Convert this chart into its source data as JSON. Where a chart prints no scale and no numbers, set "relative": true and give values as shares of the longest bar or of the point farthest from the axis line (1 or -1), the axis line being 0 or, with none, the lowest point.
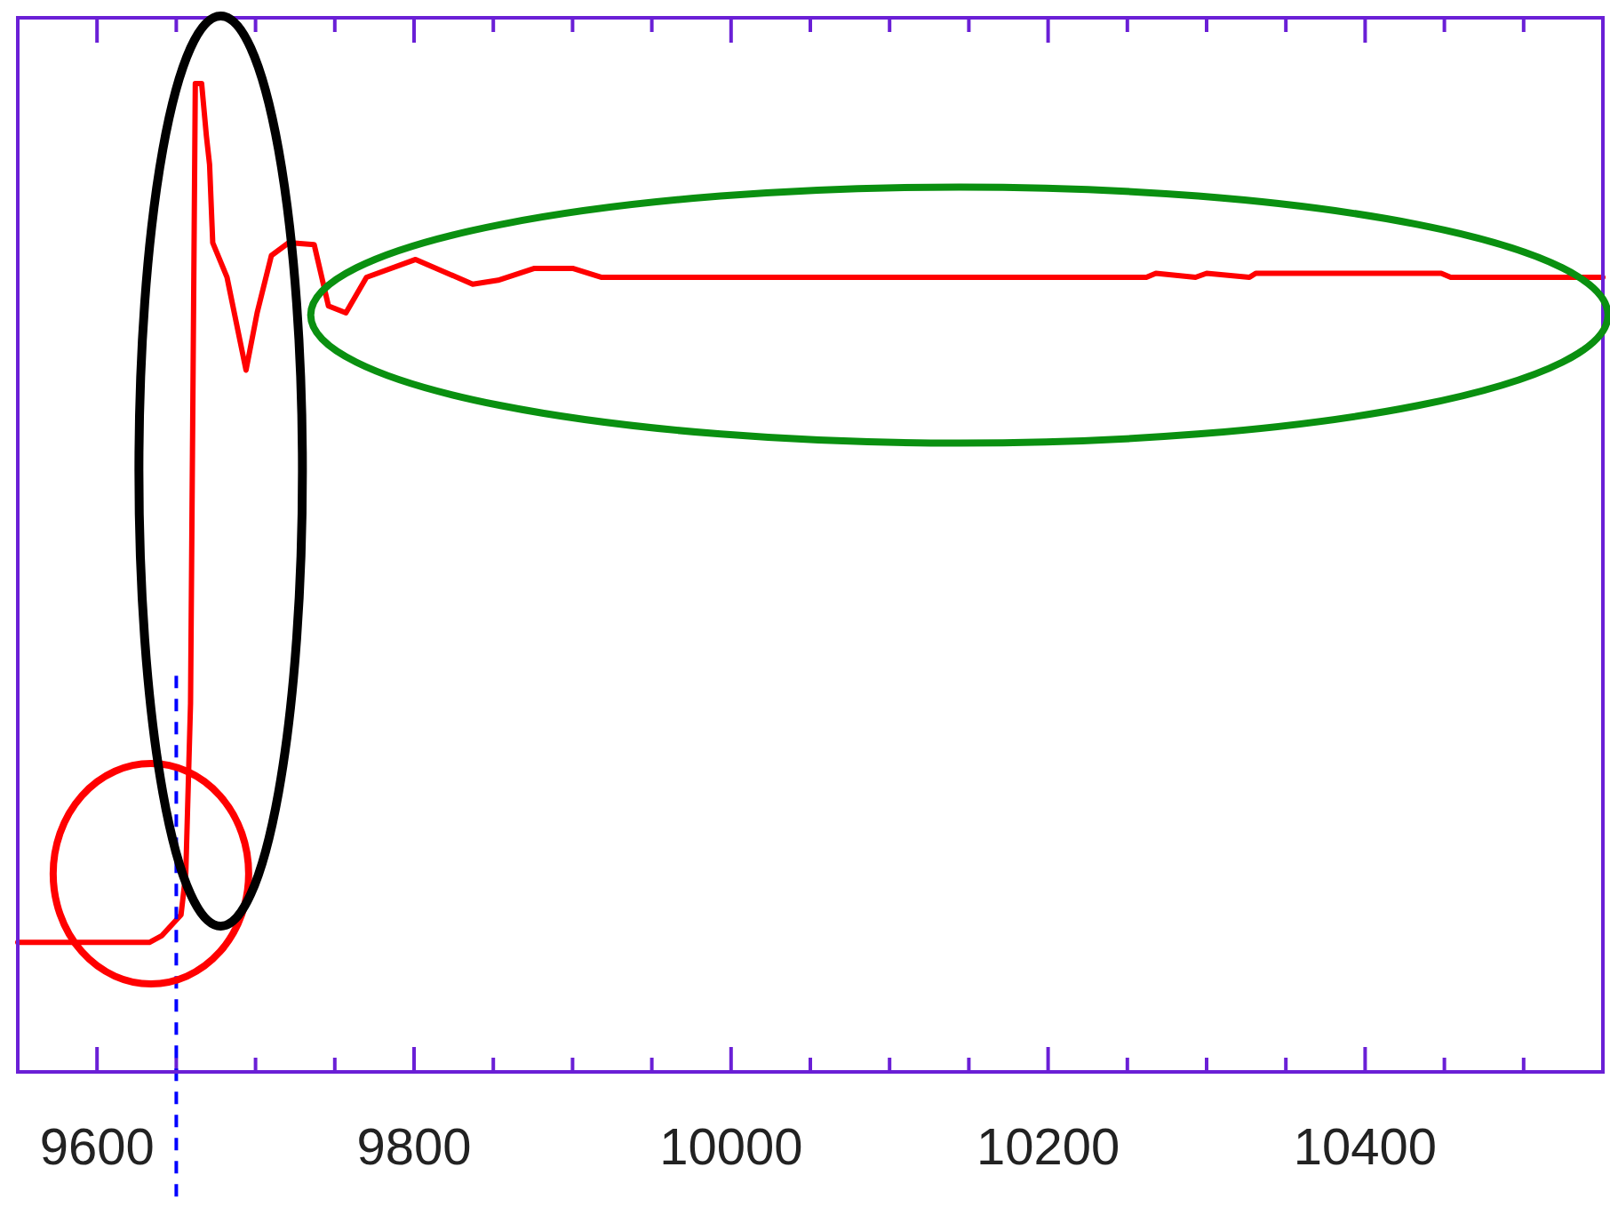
{
  "chart_data": {
    "type": "line",
    "relative": true,
    "x": [
      9550,
      9633,
      9641,
      9653,
      9656,
      9659,
      9662,
      9666,
      9669,
      9671,
      9673,
      9682,
      9694,
      9701,
      9710,
      9721,
      9737,
      9746,
      9757,
      9770,
      9801,
      9837,
      9853,
      9876,
      9900,
      9918,
      10262,
      10268,
      10293,
      10300,
      10327,
      10331,
      10448,
      10454,
      10474,
      10550
    ],
    "series": [
      {
        "color": "#ff0000",
        "values": [
          0.131,
          0.131,
          0.138,
          0.159,
          0.201,
          0.373,
          1.0,
          1.0,
          0.947,
          0.918,
          0.839,
          0.804,
          0.71,
          0.768,
          0.826,
          0.839,
          0.837,
          0.775,
          0.768,
          0.804,
          0.822,
          0.797,
          0.801,
          0.813,
          0.813,
          0.804,
          0.804,
          0.808,
          0.804,
          0.808,
          0.804,
          0.808,
          0.808,
          0.804,
          0.804,
          0.804
        ]
      }
    ],
    "xlim": [
      9550,
      10550
    ],
    "xticks": [
      9600,
      {
        "value": 9650,
        "label": null
      },
      {
        "value": 9700,
        "label": null
      },
      {
        "value": 9750,
        "label": null
      },
      9800,
      {
        "value": 9850,
        "label": null
      },
      {
        "value": 9900,
        "label": null
      },
      {
        "value": 9950,
        "label": null
      },
      10000,
      {
        "value": 10050,
        "label": null
      },
      {
        "value": 10100,
        "label": null
      },
      {
        "value": 10150,
        "label": null
      },
      10200,
      {
        "value": 10250,
        "label": null
      },
      {
        "value": 10300,
        "label": null
      },
      {
        "value": 10350,
        "label": null
      },
      10400,
      {
        "value": 10450,
        "label": null
      },
      {
        "value": 10500,
        "label": null
      }
    ],
    "ref_lines": [
      {
        "axis": "x",
        "value": 9650,
        "color": "#0000ff",
        "line_style": "dashed"
      }
    ],
    "grid": false,
    "marker": "none",
    "line_style": "solid"
  }
}
